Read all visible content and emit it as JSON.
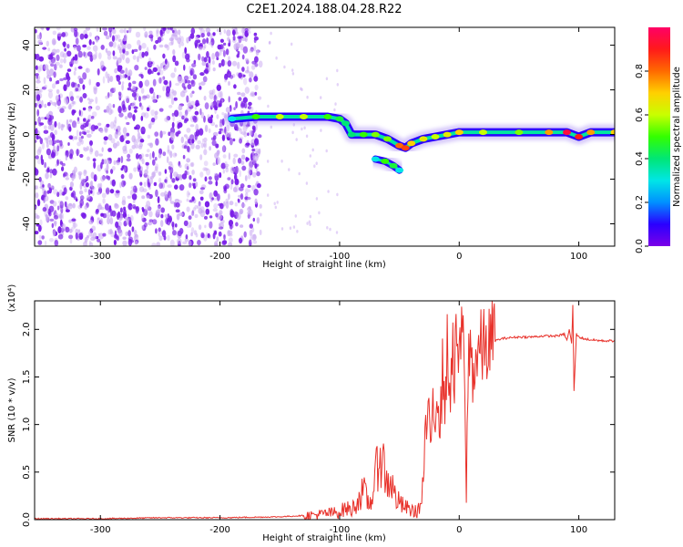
{
  "title": "C2E1.2024.188.04.28.R22",
  "colors": {
    "snr_line": "#e8312a",
    "axis": "#000000",
    "colormap": [
      "#7b00e8",
      "#2a00ff",
      "#0090ff",
      "#00e6e6",
      "#00e676",
      "#33ff00",
      "#c8ff00",
      "#ffd000",
      "#ff6a00",
      "#ff1a1a",
      "#ff0066"
    ]
  },
  "chart_data": [
    {
      "type": "heatmap",
      "title": "C2E1.2024.188.04.28.R22",
      "xlabel": "Height of straight line (km)",
      "ylabel": "Frequency (Hz)",
      "xlim": [
        -355,
        130
      ],
      "ylim": [
        -50,
        48
      ],
      "xticks": [
        -300,
        -200,
        -100,
        0,
        100
      ],
      "yticks": [
        40,
        20,
        0,
        -20,
        -40
      ],
      "colorbar": {
        "label": "Normalized spectral amplitude",
        "range": [
          0,
          1
        ],
        "ticks": [
          "0.0",
          "0.2",
          "0.4",
          "0.6",
          "0.8"
        ],
        "colormap": "rainbow"
      },
      "noise_region": {
        "x_range": [
          -355,
          -175
        ],
        "amplitude": 0.15
      },
      "signal_track": {
        "x": [
          -190,
          -170,
          -150,
          -130,
          -110,
          -100,
          -95,
          -90,
          -80,
          -70,
          -60,
          -50,
          -45,
          -40,
          -30,
          -20,
          -10,
          0,
          20,
          50,
          75,
          90,
          100,
          110,
          130
        ],
        "y": [
          7,
          8,
          8,
          8,
          8,
          7,
          5,
          0,
          0,
          0,
          -2,
          -5,
          -6,
          -4,
          -2,
          -1,
          0,
          1,
          1,
          1,
          1,
          1,
          -1,
          1,
          1
        ],
        "amp": [
          0.3,
          0.5,
          0.6,
          0.6,
          0.5,
          0.45,
          0.4,
          0.4,
          0.5,
          0.55,
          0.55,
          0.8,
          0.85,
          0.7,
          0.65,
          0.6,
          0.65,
          0.7,
          0.6,
          0.55,
          0.75,
          0.95,
          0.9,
          0.75,
          0.7
        ]
      },
      "secondary_track": {
        "x": [
          -70,
          -62,
          -55,
          -50
        ],
        "y": [
          -11,
          -12,
          -14,
          -16
        ],
        "amp": [
          0.3,
          0.5,
          0.45,
          0.3
        ]
      }
    },
    {
      "type": "line",
      "xlabel": "Height of straight line (km)",
      "ylabel": "SNR (10 * v/v)",
      "y_scale_note": "(x10⁴)",
      "xlim": [
        -355,
        130
      ],
      "ylim": [
        0,
        2.3
      ],
      "xticks": [
        -300,
        -200,
        -100,
        0,
        100
      ],
      "yticks": [
        "0.0",
        "0.5",
        "1.0",
        "1.5",
        "2.0"
      ],
      "series": [
        {
          "x": [
            -355,
            -300,
            -250,
            -200,
            -150,
            -120,
            -100,
            -95,
            -90,
            -85,
            -80,
            -75,
            -70,
            -68,
            -66,
            -64,
            -62,
            -60,
            -58,
            -55,
            -52,
            -48,
            -44,
            -40,
            -36,
            -32,
            -30,
            -28,
            -26,
            -24,
            -22,
            -20,
            -18,
            -16,
            -14,
            -12,
            -10,
            -8,
            -6,
            -4,
            -2,
            0,
            2,
            4,
            6,
            8,
            10,
            12,
            15,
            20,
            25,
            30,
            35,
            40,
            50,
            60,
            70,
            80,
            85,
            88,
            90,
            92,
            94,
            95,
            96,
            98,
            100,
            105,
            110,
            120,
            130
          ],
          "y": [
            0.01,
            0.01,
            0.02,
            0.02,
            0.03,
            0.05,
            0.08,
            0.12,
            0.1,
            0.2,
            0.3,
            0.15,
            0.4,
            0.65,
            0.72,
            0.6,
            0.5,
            0.35,
            0.45,
            0.3,
            0.2,
            0.15,
            0.12,
            0.1,
            0.08,
            0.15,
            0.4,
            0.9,
            1.2,
            0.6,
            1.35,
            1.1,
            1.5,
            0.9,
            1.55,
            1.3,
            1.75,
            1.2,
            1.95,
            1.4,
            2.05,
            1.5,
            2.15,
            1.6,
            0.3,
            1.85,
            1.7,
            1.55,
            1.75,
            1.8,
            1.85,
            1.88,
            1.9,
            1.91,
            1.92,
            1.92,
            1.93,
            1.93,
            1.94,
            1.95,
            1.88,
            2.0,
            1.85,
            2.25,
            1.35,
            1.95,
            1.92,
            1.9,
            1.89,
            1.88,
            1.88
          ]
        }
      ]
    }
  ]
}
